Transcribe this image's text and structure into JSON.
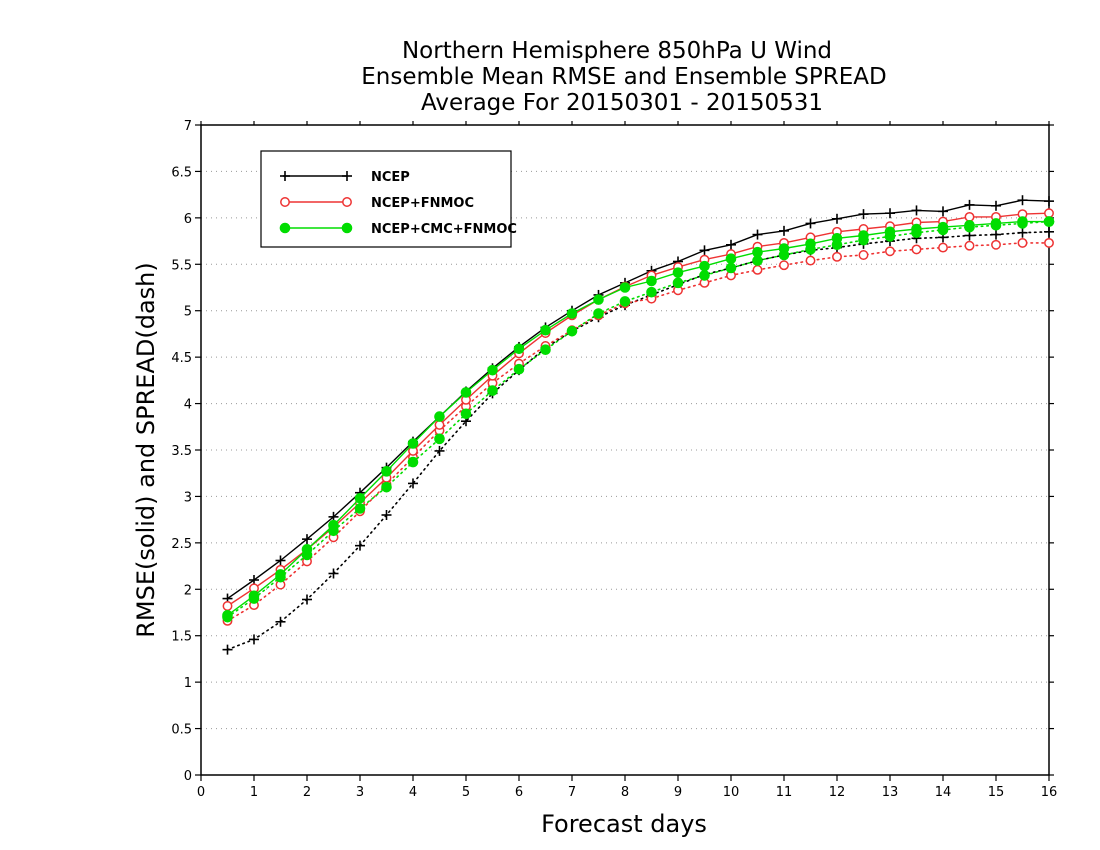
{
  "chart_data": {
    "type": "line",
    "title_lines": [
      "Northern Hemisphere 850hPa U Wind",
      "Ensemble Mean RMSE and Ensemble SPREAD",
      "Average For 20150301 - 20150531"
    ],
    "xlabel": "Forecast days",
    "ylabel": "RMSE(solid) and SPREAD(dash)",
    "xlim": [
      0,
      16
    ],
    "ylim": [
      0,
      7
    ],
    "x_ticks": [
      "0",
      "1",
      "2",
      "3",
      "4",
      "5",
      "6",
      "7",
      "8",
      "9",
      "10",
      "11",
      "12",
      "13",
      "14",
      "15",
      "16"
    ],
    "y_ticks": [
      "0",
      "0.5",
      "1",
      "1.5",
      "2",
      "2.5",
      "3",
      "3.5",
      "4",
      "4.5",
      "5",
      "5.5",
      "6",
      "6.5",
      "7"
    ],
    "grid": "horizontal dotted",
    "legend_position": "top-left",
    "x": [
      0.5,
      1,
      1.5,
      2,
      2.5,
      3,
      3.5,
      4,
      4.5,
      5,
      5.5,
      6,
      6.5,
      7,
      7.5,
      8,
      8.5,
      9,
      9.5,
      10,
      10.5,
      11,
      11.5,
      12,
      12.5,
      13,
      13.5,
      14,
      14.5,
      15,
      15.5,
      16
    ],
    "series": [
      {
        "name": "NCEP",
        "color": "#000000",
        "marker": "plus",
        "rmse": [
          1.9,
          2.1,
          2.31,
          2.54,
          2.78,
          3.04,
          3.31,
          3.59,
          3.86,
          4.13,
          4.38,
          4.61,
          4.82,
          5.0,
          5.17,
          5.3,
          5.43,
          5.53,
          5.65,
          5.71,
          5.82,
          5.86,
          5.94,
          5.99,
          6.04,
          6.05,
          6.08,
          6.07,
          6.14,
          6.13,
          6.19,
          6.18
        ],
        "spread": [
          1.35,
          1.46,
          1.65,
          1.89,
          2.17,
          2.47,
          2.8,
          3.14,
          3.49,
          3.81,
          4.11,
          4.36,
          4.6,
          4.78,
          4.93,
          5.06,
          5.17,
          5.28,
          5.39,
          5.46,
          5.54,
          5.6,
          5.65,
          5.68,
          5.72,
          5.75,
          5.78,
          5.79,
          5.81,
          5.82,
          5.84,
          5.85
        ]
      },
      {
        "name": "NCEP+FNMOC",
        "color": "#ee3333",
        "marker": "open-circle",
        "rmse": [
          1.82,
          2.01,
          2.21,
          2.43,
          2.67,
          2.93,
          3.2,
          3.49,
          3.77,
          4.04,
          4.3,
          4.54,
          4.76,
          4.95,
          5.12,
          5.26,
          5.38,
          5.47,
          5.55,
          5.61,
          5.69,
          5.73,
          5.79,
          5.85,
          5.88,
          5.91,
          5.95,
          5.96,
          6.01,
          6.01,
          6.04,
          6.05
        ],
        "spread": [
          1.66,
          1.83,
          2.05,
          2.3,
          2.56,
          2.84,
          3.13,
          3.42,
          3.71,
          3.97,
          4.22,
          4.43,
          4.62,
          4.79,
          4.95,
          5.08,
          5.13,
          5.22,
          5.3,
          5.38,
          5.44,
          5.49,
          5.54,
          5.58,
          5.6,
          5.64,
          5.66,
          5.68,
          5.7,
          5.71,
          5.73,
          5.73
        ]
      },
      {
        "name": "NCEP+CMC+FNMOC",
        "color": "#00dd00",
        "marker": "filled-circle",
        "rmse": [
          1.72,
          1.93,
          2.16,
          2.43,
          2.69,
          2.98,
          3.27,
          3.57,
          3.86,
          4.12,
          4.36,
          4.59,
          4.79,
          4.97,
          5.12,
          5.25,
          5.32,
          5.41,
          5.48,
          5.56,
          5.63,
          5.67,
          5.72,
          5.78,
          5.81,
          5.85,
          5.88,
          5.9,
          5.92,
          5.94,
          5.96,
          5.96
        ],
        "spread": [
          1.7,
          1.9,
          2.13,
          2.37,
          2.63,
          2.87,
          3.1,
          3.37,
          3.62,
          3.89,
          4.14,
          4.37,
          4.58,
          4.78,
          4.97,
          5.1,
          5.2,
          5.3,
          5.38,
          5.46,
          5.54,
          5.6,
          5.66,
          5.71,
          5.76,
          5.8,
          5.84,
          5.87,
          5.9,
          5.92,
          5.94,
          5.96
        ]
      }
    ]
  }
}
